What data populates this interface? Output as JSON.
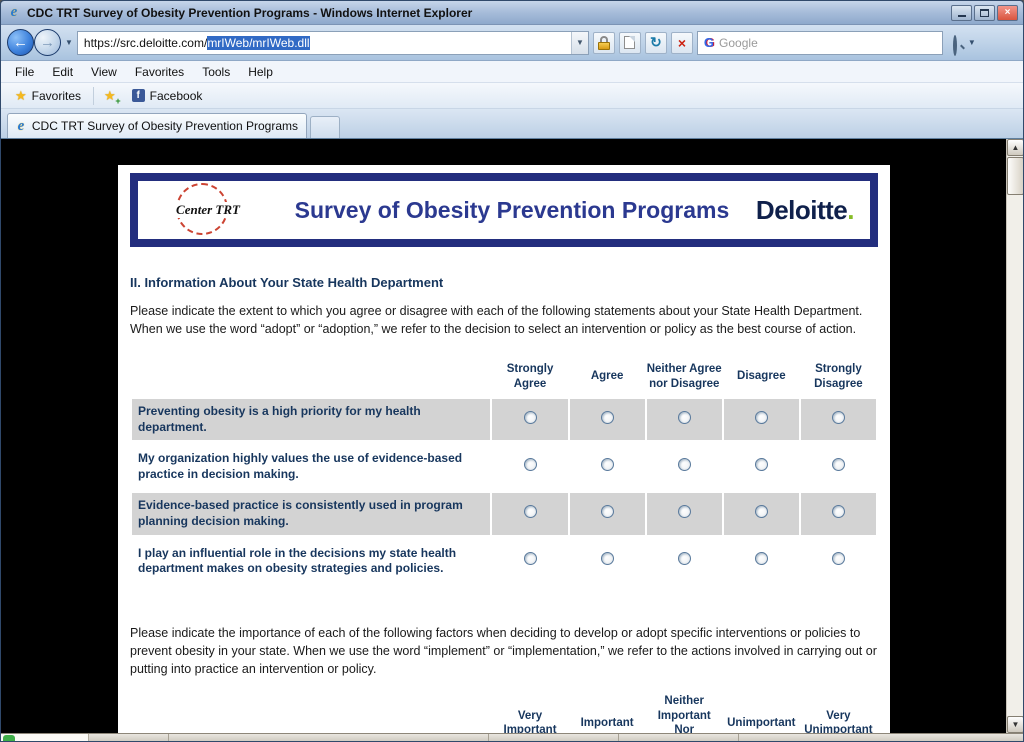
{
  "colors": {
    "banner_navy": "#232E7E",
    "heading_navy": "#17365D",
    "deloitte_green": "#86BC25",
    "row_shading": "#D3D3D3",
    "selection_blue": "#316AC5"
  },
  "window": {
    "title": "CDC TRT Survey of Obesity Prevention Programs - Windows Internet Explorer"
  },
  "nav": {
    "url_base": "https://src.deloitte.com/",
    "url_selected": "mrIWeb/mrIWeb.dll",
    "search_placeholder": "Google"
  },
  "menu": {
    "items": [
      "File",
      "Edit",
      "View",
      "Favorites",
      "Tools",
      "Help"
    ]
  },
  "favorites_bar": {
    "favorites_label": "Favorites",
    "facebook_label": "Facebook"
  },
  "tab": {
    "label": "CDC TRT Survey of Obesity Prevention Programs"
  },
  "page": {
    "banner": {
      "logo_text": "Center TRT",
      "title": "Survey of Obesity Prevention Programs",
      "brand": "Deloitte",
      "brand_dot": "."
    },
    "section_heading": "II. Information About Your State Health Department",
    "intro1": "Please indicate the extent to which you agree or disagree with each of the following statements about your State Health Department. When we use the word “adopt” or “adoption,” we refer to the decision to select an intervention or policy as the best course of action.",
    "agreement_table": {
      "columns": [
        "Strongly Agree",
        "Agree",
        "Neither Agree nor Disagree",
        "Disagree",
        "Strongly Disagree"
      ],
      "rows": [
        "Preventing obesity is a high priority for my health department.",
        "My organization highly values the use of evidence-based practice in decision making.",
        "Evidence-based practice is consistently used in program planning decision making.",
        "I play an influential role in the decisions my state health department makes on obesity strategies and policies."
      ]
    },
    "intro2": "Please indicate the importance of each of the following factors when deciding to develop or adopt specific interventions or policies to prevent obesity in your state. When we use the word “implement” or “implementation,” we refer to the actions involved in carrying out or putting into practice an intervention or policy.",
    "importance_table": {
      "columns": [
        "Very Important",
        "Important",
        "Neither Important Nor Unimportant",
        "Unimportant",
        "Very Unimportant"
      ],
      "rows": []
    }
  }
}
